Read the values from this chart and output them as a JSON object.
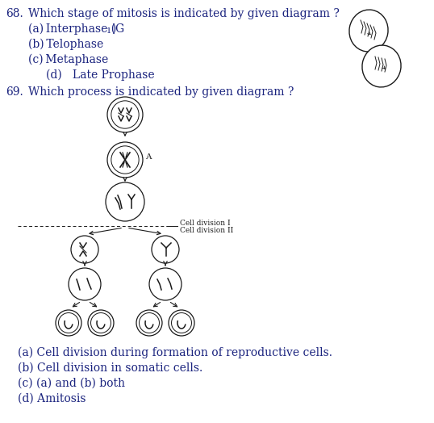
{
  "bg_color": "#ffffff",
  "text_color": "#1a237e",
  "q68_num": "68.",
  "q68_text": "Which stage of mitosis is indicated by given diagram ?",
  "q68_a": "(a) Interphase (G",
  "q68_a_sub": "1",
  "q68_a_rest": ")",
  "q68_b": "(b) Telophase",
  "q68_c": "(c) Metaphase",
  "q68_d": "(d)   Late Prophase",
  "q69_num": "69.",
  "q69_text": "Which process is indicated by given diagram ?",
  "q69_ans_a": "(a) Cell division during formation of reproductive cells.",
  "q69_ans_b": "(b) Cell division in somatic cells.",
  "q69_ans_c": "(c) (a) and (b) both",
  "q69_ans_d": "(d) Amitosis",
  "cell_div1": "Cell division I",
  "cell_div2": "Cell division II",
  "label_a": "A",
  "line_color": "#000000",
  "ans_color": "#1a237e"
}
